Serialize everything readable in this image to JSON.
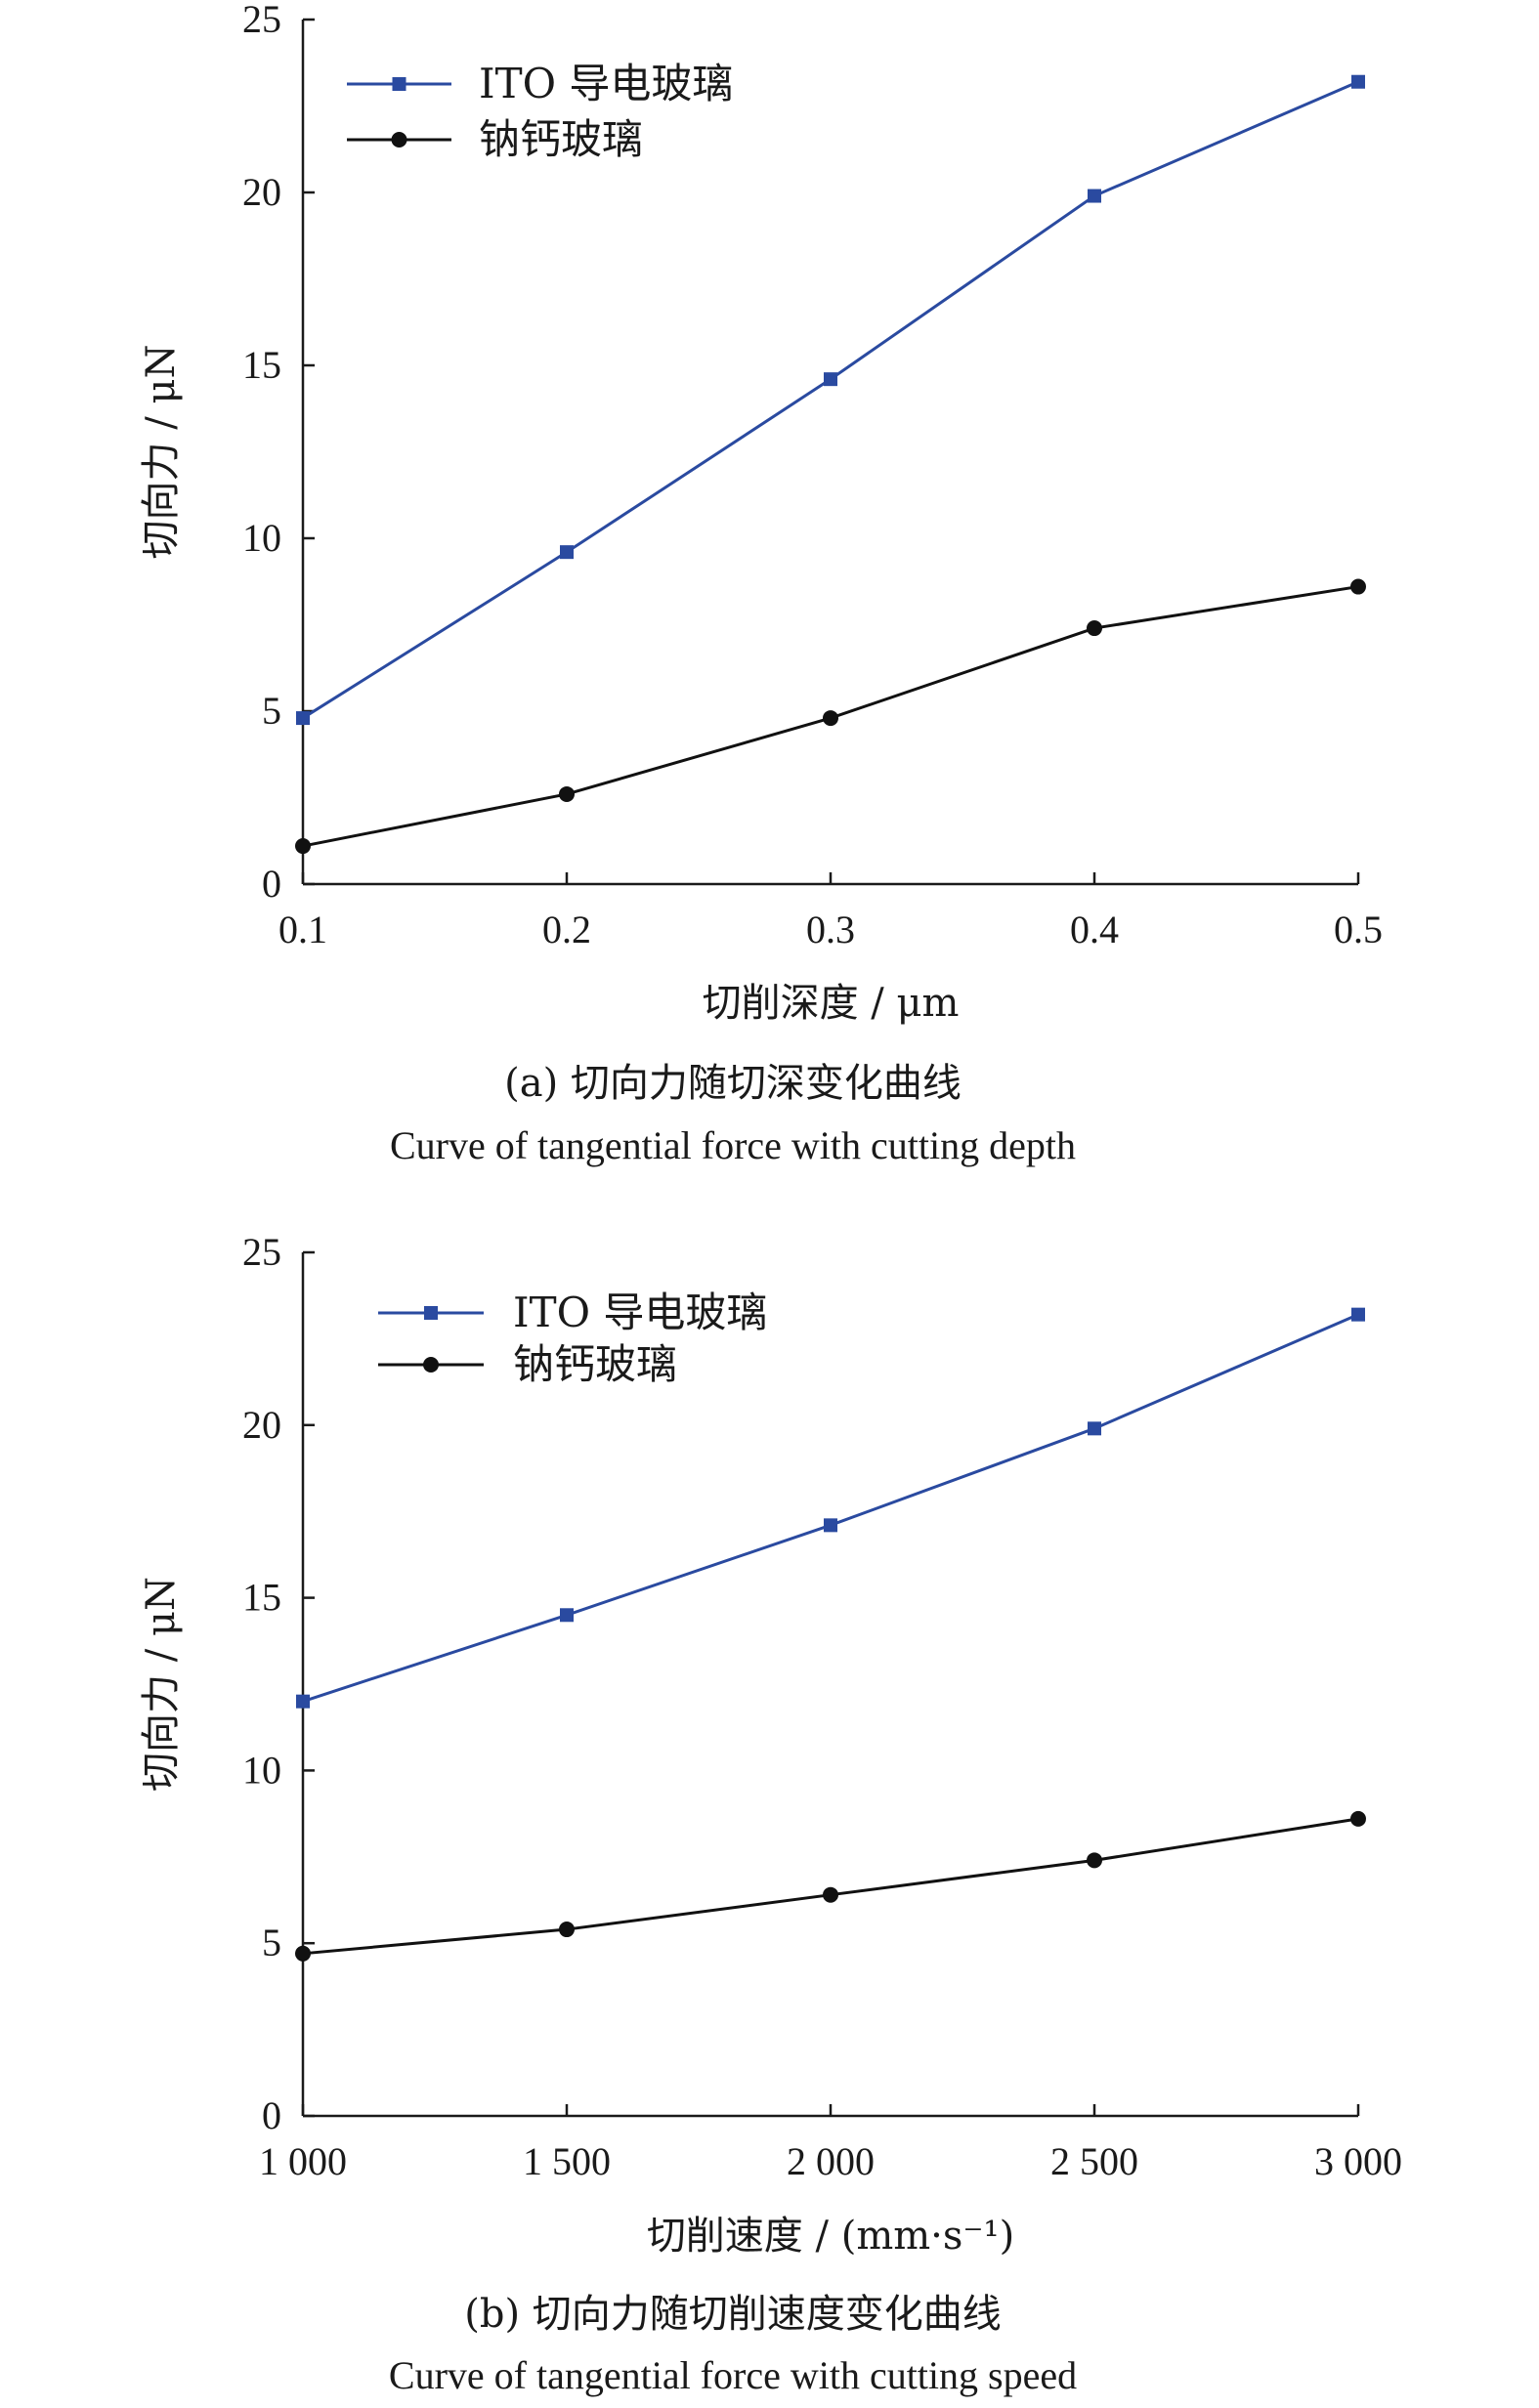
{
  "chart_data": [
    {
      "type": "line",
      "xlabel": "切削深度 / μm",
      "ylabel": "切向力 / μN",
      "x": [
        0.1,
        0.2,
        0.3,
        0.4,
        0.5
      ],
      "xtick_labels": [
        "0.1",
        "0.2",
        "0.3",
        "0.4",
        "0.5"
      ],
      "xlim": [
        0.1,
        0.5
      ],
      "ylim": [
        0,
        25
      ],
      "yticks": [
        0,
        5,
        10,
        15,
        20,
        25
      ],
      "legend_position": "top-left",
      "grid": false,
      "series": [
        {
          "name": "ITO 导电玻璃",
          "marker": "square",
          "color": "#2a4aa0",
          "values": [
            4.8,
            9.6,
            14.6,
            19.9,
            23.2
          ]
        },
        {
          "name": "钠钙玻璃",
          "marker": "circle",
          "color": "#111111",
          "values": [
            1.1,
            2.6,
            4.8,
            7.4,
            8.6
          ]
        }
      ],
      "caption_cn": "(a) 切向力随切深变化曲线",
      "caption_en": "Curve of tangential force with cutting depth"
    },
    {
      "type": "line",
      "xlabel": "切削速度 / (mm·s⁻¹)",
      "ylabel": "切向力 / μN",
      "x": [
        1000,
        1500,
        2000,
        2500,
        3000
      ],
      "xtick_labels": [
        "1 000",
        "1 500",
        "2 000",
        "2 500",
        "3 000"
      ],
      "xlim": [
        1000,
        3000
      ],
      "ylim": [
        0,
        25
      ],
      "yticks": [
        0,
        5,
        10,
        15,
        20,
        25
      ],
      "legend_position": "top-left",
      "grid": false,
      "series": [
        {
          "name": "ITO 导电玻璃",
          "marker": "square",
          "color": "#2a4aa0",
          "values": [
            12.0,
            14.5,
            17.1,
            19.9,
            23.2
          ]
        },
        {
          "name": "钠钙玻璃",
          "marker": "circle",
          "color": "#111111",
          "values": [
            4.7,
            5.4,
            6.4,
            7.4,
            8.6
          ]
        }
      ],
      "caption_cn": "(b) 切向力随切削速度变化曲线",
      "caption_en": "Curve of tangential force with cutting speed"
    }
  ]
}
